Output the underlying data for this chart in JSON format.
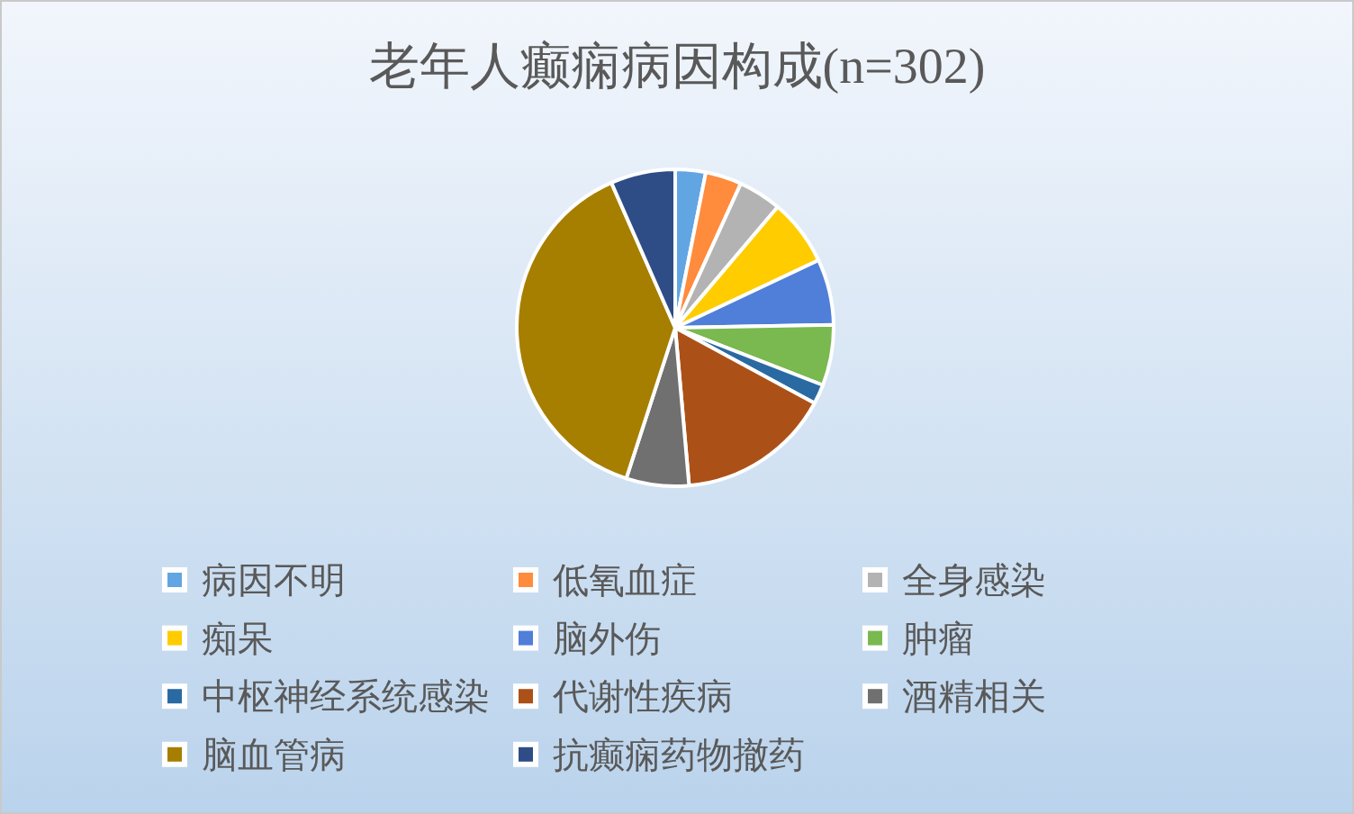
{
  "chart_data": {
    "type": "pie",
    "title": "老年人癫痫病因构成(n=302)",
    "categories": [
      "病因不明",
      "低氧血症",
      "全身感染",
      "痴呆",
      "脑外伤",
      "肿瘤",
      "中枢神经系统感染",
      "代谢性疾病",
      "酒精相关",
      "脑血管病",
      "抗癫痫药物撤药"
    ],
    "values": [
      3.1,
      3.7,
      4.4,
      6.8,
      6.7,
      6.2,
      2.0,
      15.7,
      6.4,
      38.4,
      6.6
    ],
    "colors": [
      "#62a5e3",
      "#ff8b3d",
      "#b3b3b3",
      "#ffcc00",
      "#4f7fd8",
      "#7ab850",
      "#2a6aa3",
      "#ab5118",
      "#707070",
      "#a67e00",
      "#2e4d86"
    ],
    "legend": "bottom"
  }
}
